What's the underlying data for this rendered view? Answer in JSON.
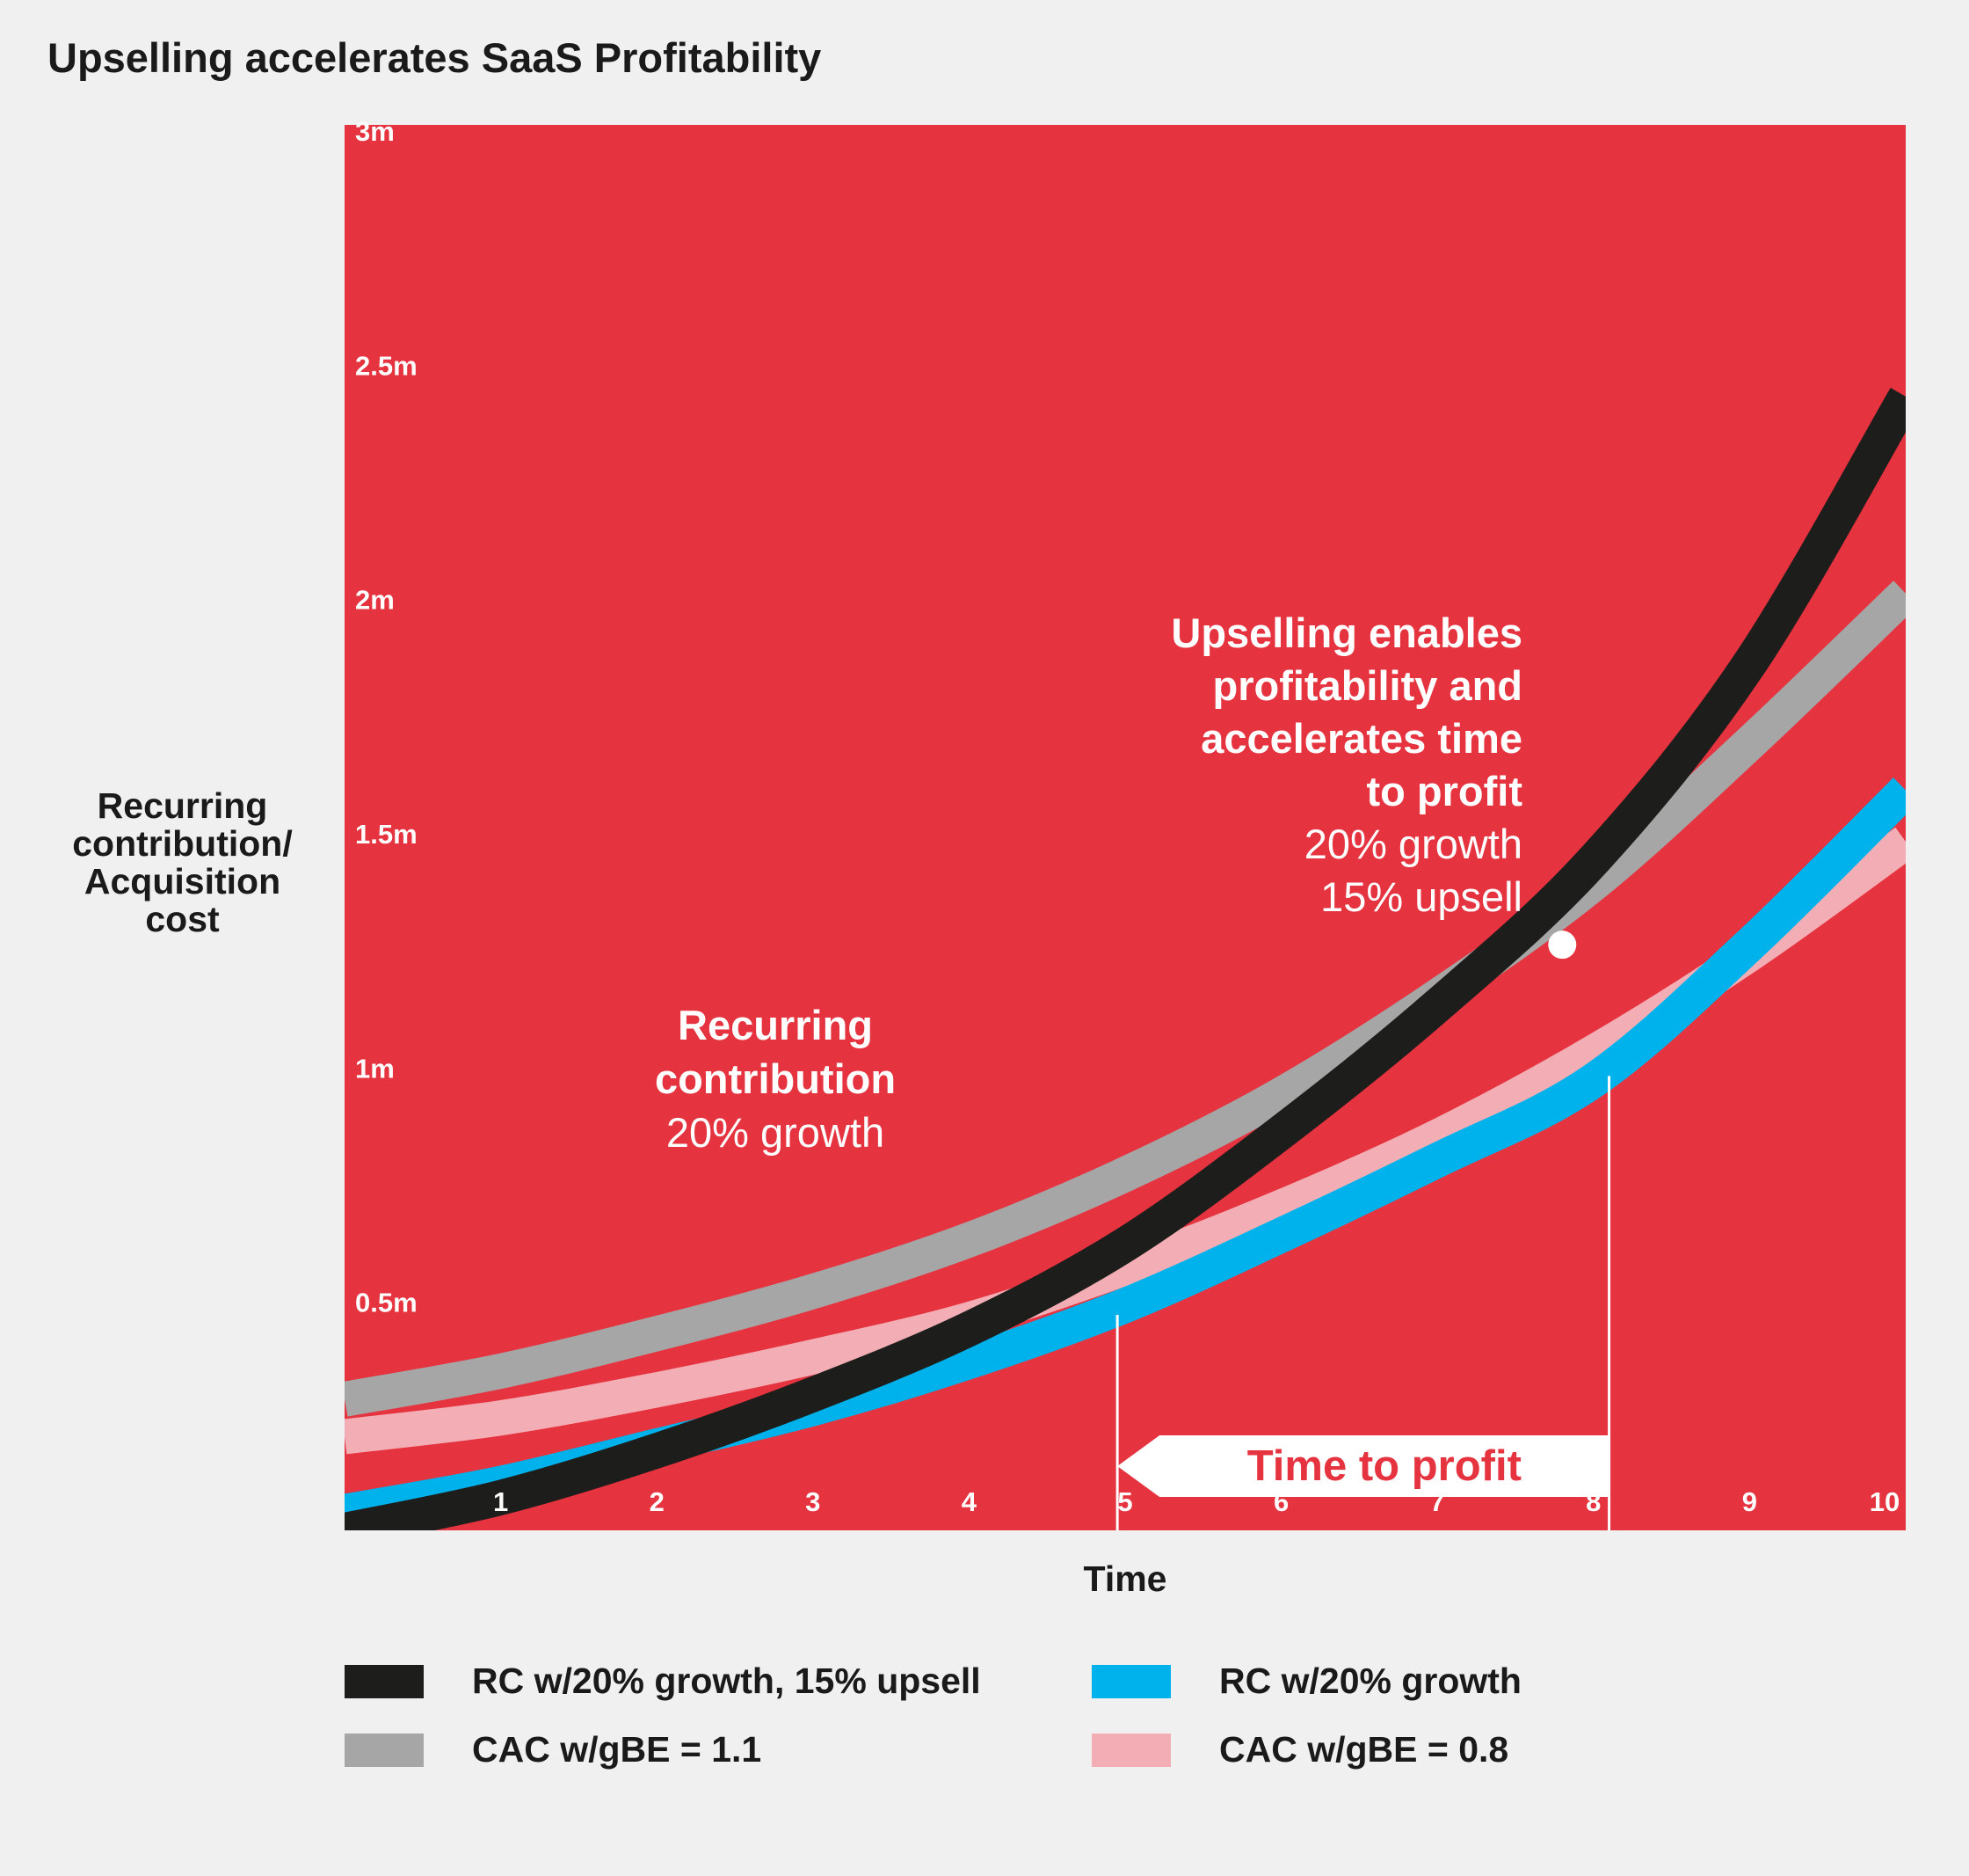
{
  "chart_data": {
    "type": "line",
    "title": "Upselling accelerates SaaS Profitability",
    "xlabel": "Time",
    "ylabel": "Recurring\ncontribution/\nAcquisition\ncost",
    "xlim": [
      0,
      10
    ],
    "ylim": [
      0,
      3000000
    ],
    "x_ticks": [
      "1",
      "2",
      "3",
      "4",
      "5",
      "6",
      "7",
      "8",
      "9",
      "10"
    ],
    "y_ticks": [
      {
        "value": 500000,
        "label": "0.5m"
      },
      {
        "value": 1000000,
        "label": "1m"
      },
      {
        "value": 1500000,
        "label": "1.5m"
      },
      {
        "value": 2000000,
        "label": "2m"
      },
      {
        "value": 2500000,
        "label": "2.5m"
      },
      {
        "value": 3000000,
        "label": "3m"
      }
    ],
    "plot_background": "#e5333f",
    "grid": false,
    "x": [
      0,
      1,
      2,
      3,
      4,
      5,
      6,
      7,
      8,
      9,
      10
    ],
    "series": [
      {
        "name": "CAC w/gBE = 1.1",
        "color": "#a6a6a6",
        "values": [
          280000,
          340000,
          420000,
          510000,
          620000,
          760000,
          930000,
          1140000,
          1380000,
          1680000,
          2000000
        ]
      },
      {
        "name": "CAC w/gBE = 0.8",
        "color": "#f2aeb4",
        "values": [
          200000,
          240000,
          300000,
          370000,
          450000,
          560000,
          690000,
          840000,
          1020000,
          1230000,
          1470000
        ]
      },
      {
        "name": "RC w/20% growth",
        "color": "#00b2eb",
        "values": [
          40000,
          100000,
          180000,
          260000,
          360000,
          480000,
          630000,
          790000,
          960000,
          1250000,
          1580000
        ]
      },
      {
        "name": "RC w/20% growth, 15% upsell",
        "color": "#1d1d1b",
        "values": [
          0,
          70000,
          170000,
          290000,
          430000,
          610000,
          850000,
          1120000,
          1430000,
          1850000,
          2420000
        ]
      }
    ],
    "legend": {
      "placement": "bottom",
      "items": [
        {
          "label": "RC w/20% growth, 15% upsell",
          "color": "#1d1d1b"
        },
        {
          "label": "RC w/20% growth",
          "color": "#00b2eb"
        },
        {
          "label": "CAC w/gBE = 1.1",
          "color": "#a6a6a6"
        },
        {
          "label": "CAC w/gBE = 0.8",
          "color": "#f2aeb4"
        }
      ]
    },
    "annotations": {
      "upsell": {
        "bold_lines": [
          "Upselling enables",
          "profitability and",
          "accelerates time",
          "to profit"
        ],
        "normal_lines": [
          "20% growth",
          "15% upsell"
        ],
        "marker_x": 7.8,
        "marker_y": 1250000
      },
      "recurring": {
        "bold_lines": [
          "Recurring",
          "contribution"
        ],
        "normal_lines": [
          "20% growth"
        ]
      },
      "time_to_profit": {
        "label": "Time to profit",
        "x_start": 4.95,
        "x_end": 8.1
      }
    }
  }
}
